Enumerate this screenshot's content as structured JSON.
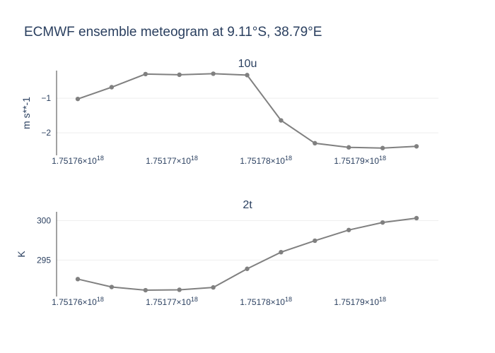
{
  "chart_data": {
    "title": "ECMWF ensemble meteogram at 9.11°S, 38.79°E",
    "panels": [
      {
        "type": "line",
        "subtitle": "10u",
        "ylabel": "m s**-1",
        "x": [
          1.75176e+18,
          1.751765e+18,
          1.75177e+18,
          1.751775e+18,
          1.75178e+18,
          1.751785e+18,
          1.75179e+18,
          1.751795e+18
        ],
        "xticks": [
          {
            "value": 1.75176e+18,
            "label": "1.75176×10",
            "exp": "18"
          },
          {
            "value": 1.75177e+18,
            "label": "1.75177×10",
            "exp": "18"
          },
          {
            "value": 1.75178e+18,
            "label": "1.75178×10",
            "exp": "18"
          },
          {
            "value": 1.75179e+18,
            "label": "1.75179×10",
            "exp": "18"
          }
        ],
        "yticks": [
          {
            "value": -1,
            "label": "−1"
          },
          {
            "value": -2,
            "label": "−2"
          }
        ],
        "ylim": [
          -2.65,
          -0.2
        ],
        "series": [
          {
            "color": "#808080",
            "x": [
              1.75176e+18,
              1.7517636e+18,
              1.7517672e+18,
              1.7517708e+18,
              1.7517744e+18,
              1.751778e+18,
              1.7517816e+18,
              1.7517852e+18,
              1.7517888e+18,
              1.7517924e+18,
              1.751796e+18
            ],
            "y": [
              -1.02,
              -0.68,
              -0.3,
              -0.32,
              -0.29,
              -0.33,
              -1.64,
              -2.3,
              -2.42,
              -2.44,
              -2.39
            ]
          }
        ]
      },
      {
        "type": "line",
        "subtitle": "2t",
        "ylabel": "K",
        "xticks": [
          {
            "value": 1.75176e+18,
            "label": "1.75176×10",
            "exp": "18"
          },
          {
            "value": 1.75177e+18,
            "label": "1.75177×10",
            "exp": "18"
          },
          {
            "value": 1.75178e+18,
            "label": "1.75178×10",
            "exp": "18"
          },
          {
            "value": 1.75179e+18,
            "label": "1.75179×10",
            "exp": "18"
          }
        ],
        "yticks": [
          {
            "value": 300,
            "label": "300"
          },
          {
            "value": 295,
            "label": "295"
          }
        ],
        "ylim": [
          290.4,
          301.1
        ],
        "series": [
          {
            "color": "#808080",
            "x": [
              1.75176e+18,
              1.7517636e+18,
              1.7517672e+18,
              1.7517708e+18,
              1.7517744e+18,
              1.751778e+18,
              1.7517816e+18,
              1.7517852e+18,
              1.7517888e+18,
              1.7517924e+18,
              1.751796e+18
            ],
            "y": [
              292.6,
              291.6,
              291.2,
              291.25,
              291.55,
              293.9,
              296.0,
              297.45,
              298.8,
              299.75,
              300.3
            ]
          }
        ]
      }
    ]
  }
}
